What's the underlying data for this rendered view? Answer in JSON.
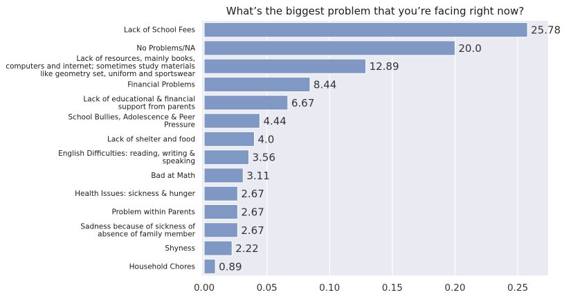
{
  "chart_data": {
    "type": "bar",
    "orientation": "horizontal",
    "title": "What’s the biggest problem that you’re facing right now?",
    "xlabel": "",
    "ylabel": "",
    "xlim": [
      0,
      0.27
    ],
    "xticks": [
      0.0,
      0.05,
      0.1,
      0.15,
      0.2,
      0.25
    ],
    "xtick_labels": [
      "0.00",
      "0.05",
      "0.10",
      "0.15",
      "0.20",
      "0.25"
    ],
    "grid": true,
    "categories": [
      [
        "Lack of School Fees"
      ],
      [
        "No Problems/NA"
      ],
      [
        "Lack of resources, mainly books,",
        "computers and internet; sometimes study materials",
        "like geometry set, uniform and sportswear"
      ],
      [
        "Financial Problems"
      ],
      [
        "Lack of educational & financial",
        "support from parents"
      ],
      [
        "School Bullies, Adolescence & Peer",
        "Pressure"
      ],
      [
        "Lack of shelter and food"
      ],
      [
        "English Difficulties: reading, writing &",
        "speaking"
      ],
      [
        "Bad at Math"
      ],
      [
        "Health Issues: sickness & hunger"
      ],
      [
        "Problem within Parents"
      ],
      [
        "Sadness because of sickness of",
        "absence of family member"
      ],
      [
        "Shyness"
      ],
      [
        "Household Chores"
      ]
    ],
    "values": [
      0.2578,
      0.2,
      0.1289,
      0.0844,
      0.0667,
      0.0444,
      0.04,
      0.0356,
      0.0311,
      0.0267,
      0.0267,
      0.0267,
      0.0222,
      0.0089
    ],
    "data_labels": [
      "25.78",
      "20.0",
      "12.89",
      "8.44",
      "6.67",
      "4.44",
      "4.0",
      "3.56",
      "3.11",
      "2.67",
      "2.67",
      "2.67",
      "2.22",
      "0.89"
    ],
    "colors": {
      "bar": "#7f99c4",
      "background": "#eaeaf2",
      "grid": "#ffffff"
    }
  }
}
